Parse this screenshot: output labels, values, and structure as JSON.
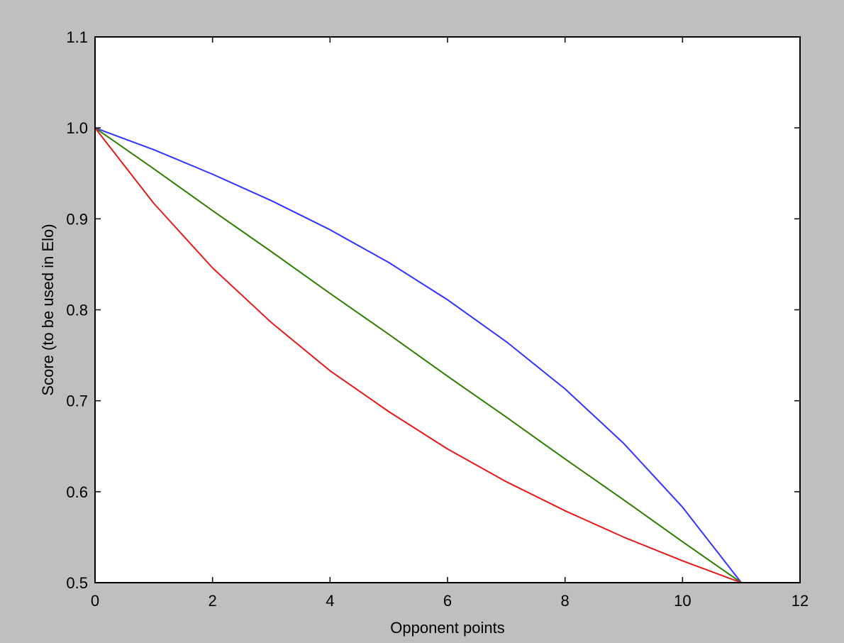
{
  "chart_data": {
    "type": "line",
    "title": "",
    "xlabel": "Opponent points",
    "ylabel": "Score (to be used in Elo)",
    "xlim": [
      0,
      12
    ],
    "ylim": [
      0.5,
      1.1
    ],
    "x_ticks": [
      0,
      2,
      4,
      6,
      8,
      10,
      12
    ],
    "x_tick_labels": [
      "0",
      "2",
      "4",
      "6",
      "8",
      "10",
      "12"
    ],
    "y_ticks": [
      0.5,
      0.6,
      0.7,
      0.8,
      0.9,
      1.0,
      1.1
    ],
    "y_tick_labels": [
      "0.5",
      "0.6",
      "0.7",
      "0.8",
      "0.9",
      "1.0",
      "1.1"
    ],
    "grid": false,
    "legend": "none",
    "colors": {
      "figure_background": "#bfbfbf",
      "axes_background": "#ffffff",
      "axis": "#000000"
    },
    "series": [
      {
        "color": "#3333ff",
        "x": [
          0,
          1,
          2,
          3,
          4,
          5,
          6,
          7,
          8,
          9,
          10,
          11
        ],
        "y": [
          1.0,
          0.976,
          0.949,
          0.92,
          0.888,
          0.852,
          0.811,
          0.765,
          0.713,
          0.653,
          0.583,
          0.5
        ]
      },
      {
        "color": "#2d7f00",
        "x": [
          0,
          1,
          2,
          3,
          4,
          5,
          6,
          7,
          8,
          9,
          10,
          11
        ],
        "y": [
          1.0,
          0.955,
          0.909,
          0.864,
          0.818,
          0.773,
          0.727,
          0.682,
          0.636,
          0.591,
          0.545,
          0.5
        ]
      },
      {
        "color": "#e61919",
        "x": [
          0,
          1,
          2,
          3,
          4,
          5,
          6,
          7,
          8,
          9,
          10,
          11
        ],
        "y": [
          1.0,
          0.917,
          0.846,
          0.786,
          0.733,
          0.688,
          0.647,
          0.611,
          0.579,
          0.55,
          0.524,
          0.5
        ]
      }
    ]
  }
}
